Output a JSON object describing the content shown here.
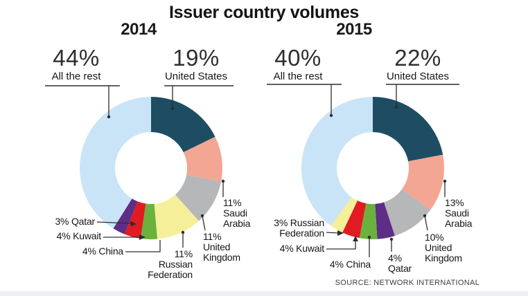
{
  "title": "Issuer country volumes",
  "source": "SOURCE: NETWORK INTERNATIONAL",
  "accent_colors": {
    "united_states": "#1e4d63",
    "saudi_arabia": "#f3a693",
    "united_kingdom": "#b6b7b9",
    "russian_federation": "#f5ef9a",
    "china": "#69b23d",
    "kuwait": "#e11b22",
    "qatar": "#5e2d86",
    "all_the_rest": "#cae4f7"
  },
  "chart_data": [
    {
      "type": "pie",
      "subtype": "donut",
      "year": "2014",
      "units": "percent",
      "legend_position": "callouts",
      "series": [
        {
          "name": "United States",
          "value": 19,
          "color": "#1e4d63"
        },
        {
          "name": "Saudi Arabia",
          "value": 11,
          "color": "#f3a693"
        },
        {
          "name": "United Kingdom",
          "value": 11,
          "color": "#b6b7b9"
        },
        {
          "name": "Russian Federation",
          "value": 11,
          "color": "#f5ef9a"
        },
        {
          "name": "China",
          "value": 4,
          "color": "#69b23d"
        },
        {
          "name": "Kuwait",
          "value": 4,
          "color": "#e11b22"
        },
        {
          "name": "Qatar",
          "value": 3,
          "color": "#5e2d86"
        },
        {
          "name": "All the rest",
          "value": 44,
          "color": "#cae4f7"
        }
      ],
      "big_labels": {
        "rest": {
          "pct": "44%",
          "name": "All the rest"
        },
        "us": {
          "pct": "19%",
          "name": "United States"
        }
      },
      "callouts": {
        "qatar": "3% Qatar",
        "kuwait": "4% Kuwait",
        "china": "4% China",
        "russia": "11%\nRussian\nFederation",
        "uk": "11%\nUnited\nKingdom",
        "saudi": "11%\nSaudi\nArabia"
      }
    },
    {
      "type": "pie",
      "subtype": "donut",
      "year": "2015",
      "units": "percent",
      "legend_position": "callouts",
      "series": [
        {
          "name": "United States",
          "value": 22,
          "color": "#1e4d63"
        },
        {
          "name": "Saudi Arabia",
          "value": 13,
          "color": "#f3a693"
        },
        {
          "name": "United Kingdom",
          "value": 10,
          "color": "#b6b7b9"
        },
        {
          "name": "Qatar",
          "value": 4,
          "color": "#5e2d86"
        },
        {
          "name": "China",
          "value": 4,
          "color": "#69b23d"
        },
        {
          "name": "Kuwait",
          "value": 4,
          "color": "#e11b22"
        },
        {
          "name": "Russian Federation",
          "value": 3,
          "color": "#f5ef9a"
        },
        {
          "name": "All the rest",
          "value": 40,
          "color": "#cae4f7"
        }
      ],
      "big_labels": {
        "rest": {
          "pct": "40%",
          "name": "All the rest"
        },
        "us": {
          "pct": "22%",
          "name": "United States"
        }
      },
      "callouts": {
        "russia": "3% Russian\nFederation",
        "kuwait": "4% Kuwait",
        "china": "4% China",
        "qatar": "4%\nQatar",
        "uk": "10%\nUnited\nKingdom",
        "saudi": "13%\nSaudi\nArabia"
      }
    }
  ]
}
